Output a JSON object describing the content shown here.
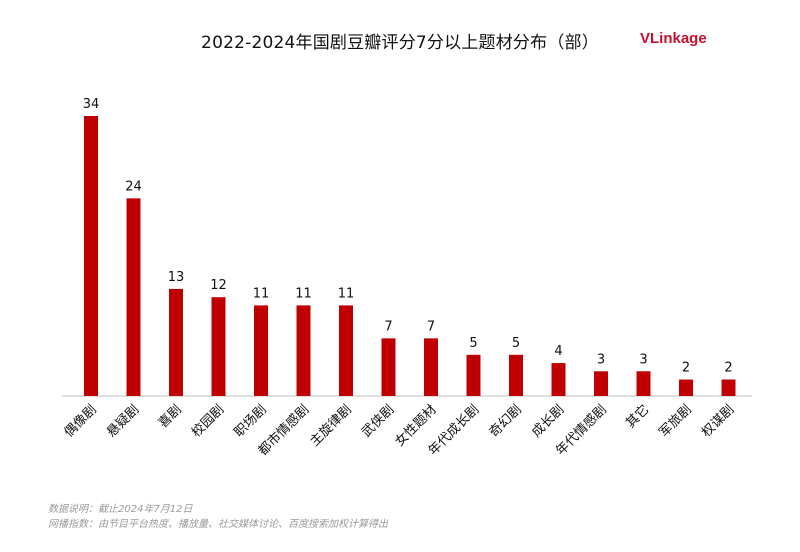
{
  "title": "2022-2024年国剧豆瓣评分7分以上题材分布（部）",
  "logo": {
    "text": "VLinkage",
    "brand_color": "#c8102e",
    "mark_color": "#3fa535"
  },
  "notes": {
    "line1": "数据说明：截止2024年7月12日",
    "line2": "网播指数：由节目平台热度、播放量、社交媒体讨论、百度搜索加权计算得出"
  },
  "colors": {
    "bar": "#c00000",
    "axis": "#bfbfbf",
    "label": "#111111"
  },
  "chart_data": {
    "type": "bar",
    "title": "2022-2024年国剧豆瓣评分7分以上题材分布（部）",
    "categories": [
      "偶像剧",
      "悬疑剧",
      "喜剧",
      "校园剧",
      "职场剧",
      "都市情感剧",
      "主旋律剧",
      "武侠剧",
      "女性题材",
      "年代成长剧",
      "奇幻剧",
      "成长剧",
      "年代情感剧",
      "其它",
      "军旅剧",
      "权谋剧"
    ],
    "values": [
      34,
      24,
      13,
      12,
      11,
      11,
      11,
      7,
      7,
      5,
      5,
      4,
      3,
      3,
      2,
      2
    ],
    "ylim": [
      0,
      34
    ],
    "xlabel": "",
    "ylabel": "",
    "grid": false,
    "legend": "none",
    "data_labels": true
  }
}
